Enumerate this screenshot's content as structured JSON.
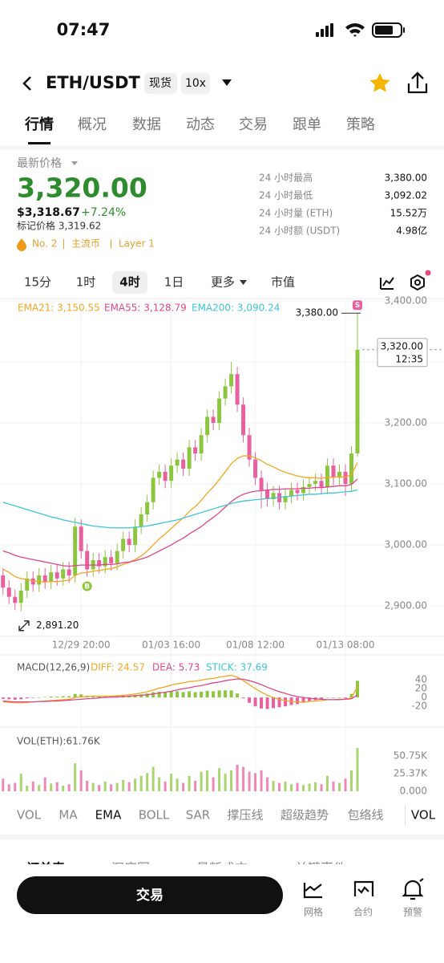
{
  "status": {
    "time": "07:47"
  },
  "header": {
    "pair": "ETH/USDT",
    "market": "现货",
    "leverage": "10x"
  },
  "tabs": [
    "行情",
    "概况",
    "数据",
    "动态",
    "交易",
    "跟单",
    "策略"
  ],
  "price": {
    "label": "最新价格",
    "last": "3,320.00",
    "usd": "$3,318.67",
    "change": "+7.24%",
    "mark": "标记价格 3,319.62",
    "tags": [
      "No. 2",
      "主流币",
      "Layer 1"
    ]
  },
  "stats": [
    [
      "24 小时最高",
      "3,380.00"
    ],
    [
      "24 小时最低",
      "3,092.02"
    ],
    [
      "24 小时量 (ETH)",
      "15.52万"
    ],
    [
      "24 小时额 (USDT)",
      "4.98亿"
    ]
  ],
  "intervals": [
    "15分",
    "1时",
    "4时",
    "1日",
    "更多",
    "市值"
  ],
  "chart_data": [
    {
      "type": "candlestick",
      "up_color": "#8cc63f",
      "down_color": "#e8609f",
      "xlim": [
        -0.5,
        60.2
      ],
      "ylim": [
        2854,
        3400
      ],
      "yticks": [
        {
          "value": 3400,
          "label": "3,400.00"
        },
        {
          "value": 3300,
          "label": "3,300.00"
        },
        {
          "value": 3200,
          "label": "3,200.00"
        },
        {
          "value": 3100,
          "label": "3,100.00"
        },
        {
          "value": 3000,
          "label": "3,000.00"
        },
        {
          "value": 2900,
          "label": "2,900.00"
        }
      ],
      "xticks": [
        {
          "value": 13,
          "label": "12/29 20:00"
        },
        {
          "value": 28,
          "label": "01/03 16:00"
        },
        {
          "value": 42,
          "label": "01/08 12:00"
        },
        {
          "value": 57,
          "label": "01/13 08:00"
        }
      ],
      "open": [
        2950,
        2930,
        2915,
        2905,
        2925,
        2945,
        2935,
        2950,
        2940,
        2955,
        2945,
        2960,
        2950,
        3030,
        2990,
        2960,
        2975,
        2965,
        2980,
        2970,
        2990,
        3010,
        3000,
        3030,
        3050,
        3070,
        3110,
        3120,
        3105,
        3130,
        3140,
        3125,
        3160,
        3150,
        3180,
        3210,
        3200,
        3240,
        3260,
        3280,
        3230,
        3180,
        3140,
        3110,
        3090,
        3075,
        3085,
        3070,
        3080,
        3090,
        3085,
        3095,
        3100,
        3105,
        3095,
        3130,
        3110,
        3120,
        3100,
        3150
      ],
      "high": [
        2962,
        2942,
        2927,
        2937,
        2957,
        2957,
        2962,
        2962,
        2967,
        2967,
        2972,
        2972,
        3045,
        3042,
        3002,
        2987,
        2987,
        2992,
        2992,
        3002,
        3022,
        3022,
        3042,
        3062,
        3082,
        3122,
        3132,
        3132,
        3142,
        3152,
        3152,
        3172,
        3172,
        3192,
        3222,
        3222,
        3252,
        3272,
        3300,
        3292,
        3242,
        3192,
        3152,
        3122,
        3102,
        3097,
        3097,
        3092,
        3102,
        3102,
        3107,
        3112,
        3117,
        3117,
        3142,
        3142,
        3132,
        3132,
        3162,
        3380
      ],
      "low": [
        2918,
        2903,
        2893,
        2891.2,
        2913,
        2923,
        2923,
        2928,
        2928,
        2933,
        2933,
        2938,
        2938,
        2978,
        2948,
        2948,
        2953,
        2953,
        2958,
        2958,
        2978,
        2988,
        2988,
        3018,
        3038,
        3058,
        3098,
        3093,
        3093,
        3118,
        3113,
        3113,
        3138,
        3138,
        3168,
        3188,
        3188,
        3228,
        3248,
        3218,
        3168,
        3128,
        3098,
        3060,
        3063,
        3063,
        3058,
        3058,
        3068,
        3073,
        3073,
        3083,
        3088,
        3083,
        3083,
        3098,
        3098,
        3080,
        3088,
        3145
      ],
      "close": [
        2930,
        2915,
        2905,
        2925,
        2945,
        2935,
        2950,
        2940,
        2955,
        2945,
        2960,
        2950,
        3030,
        2990,
        2960,
        2975,
        2965,
        2980,
        2970,
        2990,
        3010,
        3000,
        3030,
        3050,
        3070,
        3110,
        3120,
        3105,
        3130,
        3140,
        3125,
        3160,
        3150,
        3180,
        3210,
        3200,
        3240,
        3260,
        3280,
        3230,
        3180,
        3140,
        3110,
        3090,
        3075,
        3085,
        3070,
        3080,
        3090,
        3085,
        3095,
        3100,
        3105,
        3095,
        3130,
        3110,
        3120,
        3100,
        3150,
        3320
      ],
      "series": [
        {
          "name": "EMA21: 3,150.55",
          "color": "#f5a623",
          "values": [
            2960,
            2955,
            2948,
            2945,
            2943,
            2941,
            2940,
            2939,
            2940,
            2940,
            2941,
            2942,
            2950,
            2954,
            2955,
            2957,
            2958,
            2960,
            2961,
            2964,
            2968,
            2971,
            2976,
            2982,
            2990,
            3000,
            3010,
            3018,
            3027,
            3036,
            3044,
            3055,
            3063,
            3073,
            3085,
            3095,
            3107,
            3120,
            3133,
            3142,
            3146,
            3146,
            3143,
            3138,
            3132,
            3128,
            3123,
            3119,
            3116,
            3113,
            3111,
            3110,
            3110,
            3109,
            3111,
            3111,
            3112,
            3111,
            3115,
            3135
          ]
        },
        {
          "name": "EMA55: 3,128.79",
          "color": "#e0458a",
          "values": [
            2990,
            2987,
            2983,
            2980,
            2978,
            2976,
            2974,
            2972,
            2970,
            2968,
            2966,
            2965,
            2966,
            2967,
            2967,
            2967,
            2967,
            2968,
            2968,
            2969,
            2971,
            2972,
            2974,
            2977,
            2980,
            2985,
            2990,
            2995,
            3000,
            3006,
            3011,
            3018,
            3024,
            3030,
            3038,
            3045,
            3053,
            3062,
            3071,
            3078,
            3083,
            3086,
            3088,
            3089,
            3090,
            3091,
            3091,
            3092,
            3092,
            3092,
            3093,
            3093,
            3094,
            3094,
            3095,
            3096,
            3097,
            3097,
            3099,
            3108
          ]
        },
        {
          "name": "EMA200: 3,090.24",
          "color": "#3ec6d6",
          "values": [
            3070,
            3067,
            3064,
            3061,
            3058,
            3055,
            3052,
            3049,
            3046,
            3044,
            3041,
            3039,
            3037,
            3035,
            3033,
            3031,
            3030,
            3029,
            3028,
            3028,
            3028,
            3028,
            3029,
            3030,
            3031,
            3033,
            3035,
            3037,
            3039,
            3041,
            3044,
            3047,
            3050,
            3053,
            3056,
            3059,
            3062,
            3065,
            3068,
            3070,
            3072,
            3073,
            3074,
            3075,
            3076,
            3077,
            3078,
            3079,
            3080,
            3081,
            3082,
            3083,
            3083,
            3084,
            3085,
            3085,
            3086,
            3087,
            3088,
            3090
          ]
        }
      ],
      "high_label": {
        "value": 3380,
        "label": "3,380.00"
      },
      "last_label": {
        "value": 3320,
        "label": "3,320.00",
        "time": "12:35"
      },
      "low_label": {
        "value": 2891.2,
        "label": "2,891.20"
      },
      "markers": [
        {
          "x": 14,
          "label": "B",
          "color": "#8cc63f"
        },
        {
          "x": 59,
          "label": "S",
          "color": "#e8609f"
        }
      ]
    },
    {
      "type": "bar",
      "title": "MACD(12,26,9)",
      "up_color": "#8cc63f",
      "down_color": "#e8609f",
      "ylim": [
        -56,
        71
      ],
      "yticks": [
        40,
        20,
        0,
        -20
      ],
      "values": [
        -3,
        -4,
        -5,
        -4,
        -2,
        -1,
        0,
        1,
        2,
        2,
        3,
        3,
        8,
        7,
        4,
        4,
        3,
        3,
        2,
        3,
        4,
        4,
        6,
        7,
        9,
        12,
        13,
        12,
        14,
        14,
        12,
        14,
        12,
        13,
        15,
        14,
        16,
        16,
        16,
        9,
        -2,
        -12,
        -20,
        -25,
        -26,
        -24,
        -22,
        -20,
        -17,
        -15,
        -12,
        -9,
        -6,
        -5,
        0,
        -1,
        0,
        -2,
        8,
        37.69
      ],
      "stick_label": "STICK: 37.69",
      "stick_color": "#3ec6d6",
      "series": [
        {
          "name": "DIFF: 24.57",
          "color": "#f5a623",
          "values": [
            -10,
            -11,
            -12,
            -12,
            -11,
            -10,
            -9,
            -8,
            -7,
            -6,
            -5,
            -4,
            0,
            2,
            2,
            3,
            3,
            3,
            3,
            4,
            5,
            6,
            8,
            10,
            13,
            17,
            21,
            24,
            28,
            31,
            33,
            36,
            37,
            39,
            42,
            43,
            46,
            48,
            50,
            46,
            38,
            29,
            20,
            12,
            5,
            0,
            -4,
            -7,
            -9,
            -10,
            -10,
            -9,
            -8,
            -7,
            -5,
            -5,
            -4,
            -4,
            -1,
            24.57
          ]
        },
        {
          "name": "DEA: 5.73",
          "color": "#e0458a",
          "values": [
            -8,
            -9,
            -10,
            -10,
            -10,
            -10,
            -9,
            -9,
            -8,
            -8,
            -7,
            -6,
            -5,
            -4,
            -3,
            -2,
            -1,
            0,
            1,
            1,
            2,
            3,
            4,
            5,
            6,
            8,
            10,
            12,
            14,
            17,
            20,
            22,
            25,
            27,
            30,
            33,
            35,
            38,
            40,
            42,
            41,
            38,
            34,
            29,
            23,
            18,
            13,
            9,
            5,
            2,
            0,
            -2,
            -3,
            -4,
            -5,
            -5,
            -5,
            -4,
            -3,
            5.73
          ]
        }
      ]
    },
    {
      "type": "bar",
      "title": "VOL(ETH):61.76K",
      "ylim": [
        0,
        62
      ],
      "yticks": [
        {
          "value": 50.75,
          "label": "50.75K"
        },
        {
          "value": 25.37,
          "label": "25.37K"
        },
        {
          "value": 0,
          "label": "0.000"
        }
      ],
      "values": [
        18,
        10,
        12,
        25,
        8,
        14,
        9,
        20,
        11,
        13,
        8,
        10,
        40,
        30,
        15,
        12,
        9,
        14,
        10,
        12,
        16,
        13,
        18,
        22,
        26,
        35,
        20,
        14,
        25,
        18,
        12,
        22,
        15,
        28,
        30,
        20,
        33,
        25,
        30,
        38,
        35,
        28,
        26,
        30,
        20,
        15,
        12,
        14,
        10,
        12,
        9,
        11,
        13,
        10,
        22,
        14,
        12,
        18,
        30,
        61.76
      ]
    }
  ],
  "indicators": [
    "VOL",
    "MA",
    "EMA",
    "BOLL",
    "SAR",
    "撑压线",
    "超级趋势",
    "包络线",
    "VOL"
  ],
  "order_tabs": [
    "订单表",
    "深度图",
    "最新成交",
    "关键事件"
  ],
  "footer": {
    "button": "交易",
    "actions": [
      "网格",
      "合约",
      "预警"
    ]
  }
}
